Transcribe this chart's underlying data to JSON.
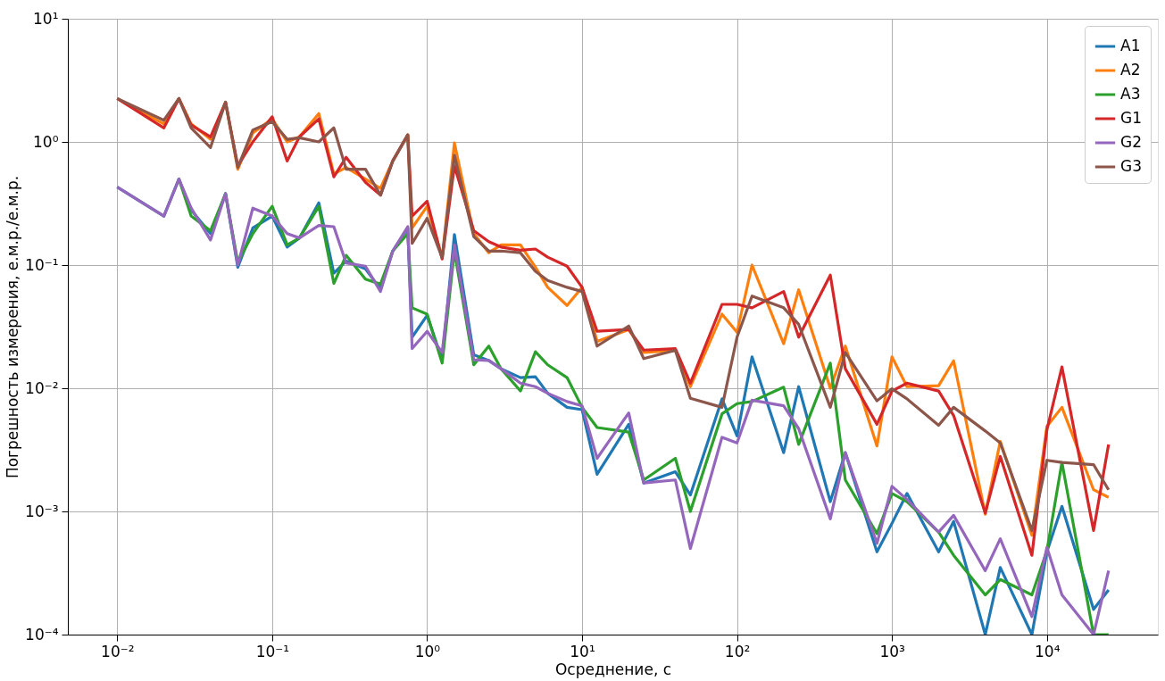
{
  "chart_data": {
    "type": "line",
    "xlabel": "Осреднение, с",
    "ylabel": "Погрешность измерения, е.м.р./е.м.р.",
    "log": "xy",
    "grid": true,
    "legend": "top right",
    "marker": "none",
    "line_style": "solid",
    "xlim": [
      0.0048,
      52000
    ],
    "ylim": [
      0.0001,
      10
    ],
    "xticks": [
      {
        "value": 0.01,
        "label": "10⁻²"
      },
      {
        "value": 0.1,
        "label": "10⁻¹"
      },
      {
        "value": 1,
        "label": "10⁰"
      },
      {
        "value": 10,
        "label": "10¹"
      },
      {
        "value": 100,
        "label": "10²"
      },
      {
        "value": 1000,
        "label": "10³"
      },
      {
        "value": 10000,
        "label": "10⁴"
      }
    ],
    "yticks": [
      {
        "value": 0.0001,
        "label": "10⁻⁴"
      },
      {
        "value": 0.001,
        "label": "10⁻³"
      },
      {
        "value": 0.01,
        "label": "10⁻²"
      },
      {
        "value": 0.1,
        "label": "10⁻¹"
      },
      {
        "value": 1,
        "label": "10⁰"
      },
      {
        "value": 10,
        "label": "10¹"
      }
    ],
    "x": [
      0.01,
      0.02,
      0.025,
      0.03,
      0.04,
      0.05,
      0.06,
      0.075,
      0.1,
      0.125,
      0.15,
      0.2,
      0.25,
      0.3,
      0.4,
      0.5,
      0.6,
      0.75,
      0.8,
      1,
      1.25,
      1.5,
      2,
      2.5,
      3,
      4,
      5,
      6,
      8,
      10,
      12.5,
      20,
      25,
      40,
      50,
      80,
      100,
      125,
      200,
      250,
      400,
      500,
      800,
      1000,
      1250,
      2000,
      2500,
      4000,
      5000,
      8000,
      10000,
      12500,
      20000,
      25000
    ],
    "series": [
      {
        "name": "A1",
        "color": "#1f77b4",
        "values": [
          0.43,
          0.25,
          0.5,
          0.28,
          0.18,
          0.38,
          0.096,
          0.2,
          0.25,
          0.14,
          0.166,
          0.32,
          0.086,
          0.108,
          0.093,
          0.064,
          0.13,
          0.2,
          0.026,
          0.039,
          0.017,
          0.177,
          0.0187,
          0.0168,
          0.0144,
          0.0122,
          0.0124,
          0.0091,
          0.007,
          0.0067,
          0.002,
          0.0051,
          0.0017,
          0.0021,
          0.00136,
          0.0082,
          0.0041,
          0.018,
          0.003,
          0.0103,
          0.0012,
          0.003,
          0.00047,
          0.0008,
          0.0014,
          0.00047,
          0.00083,
          0.0001,
          0.00035,
          0.0001,
          0.00047,
          0.0011,
          0.00016,
          0.00023
        ]
      },
      {
        "name": "A2",
        "color": "#ff7f0e",
        "values": [
          2.25,
          1.4,
          2.25,
          1.4,
          1.05,
          2.1,
          0.6,
          1.18,
          1.54,
          1.0,
          1.1,
          1.7,
          0.55,
          0.62,
          0.5,
          0.42,
          0.7,
          1.14,
          0.2,
          0.3,
          0.115,
          0.98,
          0.18,
          0.126,
          0.146,
          0.146,
          0.096,
          0.066,
          0.047,
          0.066,
          0.024,
          0.03,
          0.0195,
          0.0203,
          0.0103,
          0.04,
          0.0285,
          0.1,
          0.023,
          0.063,
          0.01,
          0.022,
          0.0034,
          0.018,
          0.0103,
          0.0105,
          0.0167,
          0.00095,
          0.0037,
          0.00064,
          0.0049,
          0.007,
          0.0015,
          0.0013
        ]
      },
      {
        "name": "A3",
        "color": "#2ca02c",
        "values": [
          null,
          null,
          0.5,
          0.25,
          0.19,
          0.38,
          0.105,
          0.18,
          0.3,
          0.146,
          0.166,
          0.3,
          0.071,
          0.12,
          0.077,
          0.07,
          0.13,
          0.18,
          0.045,
          0.04,
          0.016,
          0.13,
          0.0155,
          0.022,
          0.0144,
          0.0095,
          0.0198,
          0.0155,
          0.0122,
          0.007,
          0.0048,
          0.0044,
          0.0018,
          0.0027,
          0.001,
          0.0062,
          0.0075,
          0.0078,
          0.0102,
          0.0035,
          0.016,
          0.0018,
          0.00066,
          0.0014,
          0.0012,
          0.00068,
          0.00044,
          0.00021,
          0.00028,
          0.00021,
          0.00048,
          0.0025,
          0.0001,
          0.0001
        ]
      },
      {
        "name": "G1",
        "color": "#d62728",
        "values": [
          2.25,
          1.3,
          2.25,
          1.37,
          1.1,
          2.1,
          0.64,
          1.0,
          1.6,
          0.7,
          1.1,
          1.54,
          0.52,
          0.75,
          0.47,
          0.37,
          0.7,
          1.14,
          0.25,
          0.33,
          0.112,
          0.64,
          0.19,
          0.155,
          0.14,
          0.132,
          0.135,
          0.116,
          0.098,
          0.066,
          0.029,
          0.03,
          0.0204,
          0.021,
          0.011,
          0.048,
          0.048,
          0.045,
          0.061,
          0.026,
          0.083,
          0.0144,
          0.0051,
          0.0095,
          0.011,
          0.0095,
          0.006,
          0.00097,
          0.0028,
          0.00044,
          0.0046,
          0.0149,
          0.0007,
          0.0035
        ]
      },
      {
        "name": "G2",
        "color": "#9467bd",
        "values": [
          0.43,
          0.25,
          0.5,
          0.29,
          0.16,
          0.38,
          0.1,
          0.29,
          0.25,
          0.18,
          0.166,
          0.21,
          0.205,
          0.104,
          0.098,
          0.061,
          0.13,
          0.205,
          0.021,
          0.029,
          0.0195,
          0.146,
          0.017,
          0.0168,
          0.0144,
          0.011,
          0.0103,
          0.0091,
          0.0078,
          0.0072,
          0.0027,
          0.0063,
          0.0017,
          0.0018,
          0.0005,
          0.004,
          0.0036,
          0.008,
          0.0072,
          0.0047,
          0.00087,
          0.003,
          0.00055,
          0.0016,
          0.00125,
          0.00068,
          0.00093,
          0.00033,
          0.0006,
          0.00014,
          0.00051,
          0.00021,
          0.0001,
          0.00033
        ]
      },
      {
        "name": "G3",
        "color": "#8c564b",
        "values": [
          2.25,
          1.5,
          2.25,
          1.3,
          0.9,
          2.1,
          0.62,
          1.25,
          1.46,
          1.05,
          1.08,
          1.0,
          1.3,
          0.6,
          0.6,
          0.37,
          0.7,
          1.14,
          0.15,
          0.24,
          0.115,
          0.78,
          0.17,
          0.13,
          0.13,
          0.126,
          0.089,
          0.075,
          0.066,
          0.061,
          0.022,
          0.032,
          0.0174,
          0.0203,
          0.0083,
          0.007,
          0.026,
          0.056,
          0.045,
          0.033,
          0.007,
          0.0195,
          0.0079,
          0.0099,
          0.0082,
          0.005,
          0.007,
          0.0045,
          0.0036,
          0.0007,
          0.0026,
          0.0025,
          0.0024,
          0.0015
        ]
      }
    ]
  }
}
